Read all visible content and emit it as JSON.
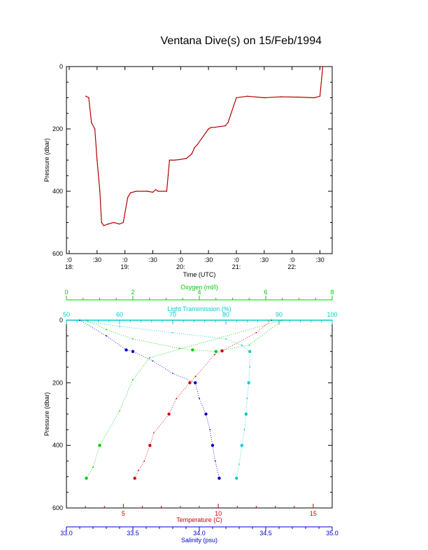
{
  "title": "Ventana Dive(s) on 15/Feb/1994",
  "chart_data": [
    {
      "type": "line",
      "title": "Ventana Dive(s) on 15/Feb/1994",
      "xlabel": "Time (UTC)",
      "ylabel": "Pressure (dbar)",
      "xlim": [
        17.95,
        22.72
      ],
      "ylim": [
        600,
        0
      ],
      "y_inverted": true,
      "x_ticks": [
        {
          "v": 18.0,
          "top": ":0",
          "bottom": "18:"
        },
        {
          "v": 18.5,
          "top": ":30",
          "bottom": ""
        },
        {
          "v": 19.0,
          "top": ":0",
          "bottom": "19:"
        },
        {
          "v": 19.5,
          "top": ":30",
          "bottom": ""
        },
        {
          "v": 20.0,
          "top": ":0",
          "bottom": "20:"
        },
        {
          "v": 20.5,
          "top": ":30",
          "bottom": ""
        },
        {
          "v": 21.0,
          "top": ":0",
          "bottom": "21:"
        },
        {
          "v": 21.5,
          "top": ":30",
          "bottom": ""
        },
        {
          "v": 22.0,
          "top": ":0",
          "bottom": "22:"
        },
        {
          "v": 22.5,
          "top": ":30",
          "bottom": ""
        }
      ],
      "y_ticks": [
        "0",
        "200",
        "400",
        "600"
      ],
      "series": [
        {
          "color": "#cc0000",
          "x": [
            18.3,
            18.35,
            18.4,
            18.46,
            18.5,
            18.55,
            18.58,
            18.62,
            18.7,
            18.8,
            18.9,
            18.97,
            19.05,
            19.1,
            19.2,
            19.4,
            19.5,
            19.55,
            19.6,
            19.75,
            19.8,
            19.9,
            20.1,
            20.2,
            20.25,
            20.3,
            20.5,
            20.55,
            20.6,
            20.8,
            20.85,
            21.0,
            21.2,
            21.5,
            21.8,
            22.1,
            22.4,
            22.5,
            22.55
          ],
          "y": [
            95,
            100,
            180,
            200,
            300,
            400,
            500,
            510,
            505,
            500,
            505,
            500,
            420,
            405,
            400,
            400,
            403,
            395,
            400,
            400,
            300,
            300,
            295,
            280,
            260,
            250,
            200,
            195,
            195,
            190,
            180,
            100,
            95,
            100,
            97,
            98,
            100,
            95,
            0
          ]
        }
      ]
    },
    {
      "type": "scatter",
      "ylabel": "Pressure (dbar)",
      "ylim": [
        600,
        0
      ],
      "y_inverted": true,
      "y_ticks": [
        "0",
        "200",
        "400",
        "600"
      ],
      "axes": {
        "oxygen": {
          "label": "Oxygen (ml/l)",
          "color": "#00cc00",
          "range": [
            0,
            8
          ],
          "ticks": [
            "0",
            "2",
            "4",
            "6",
            "8"
          ]
        },
        "light": {
          "label": "Light Transmission (%)",
          "color": "#00cccc",
          "range": [
            50,
            100
          ],
          "ticks": [
            "50",
            "60",
            "70",
            "80",
            "90",
            "100"
          ]
        },
        "temperature": {
          "label": "Temperature (C)",
          "color": "#cc0000",
          "range": [
            2,
            16
          ],
          "ticks": [
            "5",
            "10",
            "15"
          ]
        },
        "salinity": {
          "label": "Salinity (psu)",
          "color": "#0000cc",
          "range": [
            33.0,
            35.0
          ],
          "ticks": [
            "33.0",
            "33.5",
            "34.0",
            "34.5",
            "35.0"
          ]
        }
      },
      "series": [
        {
          "name": "Oxygen (ml/l)",
          "color": "#00cc00",
          "axis": "oxygen",
          "x": [
            0.6,
            1.2,
            2.0,
            3.4,
            3.8,
            4.5,
            5.5,
            6.5,
            2.5,
            2.0,
            1.6,
            1.0,
            0.8,
            0.6
          ],
          "y": [
            0,
            30,
            60,
            90,
            95,
            100,
            80,
            0,
            120,
            190,
            290,
            400,
            470,
            505
          ]
        },
        {
          "name": "Light Transmission (%)",
          "color": "#00cccc",
          "axis": "light",
          "x": [
            52,
            60,
            70,
            80,
            83,
            84.5,
            84.5,
            84.3,
            84.0,
            83.8,
            83.5,
            83.0,
            82.5,
            82.0
          ],
          "y": [
            0,
            20,
            40,
            60,
            80,
            100,
            150,
            200,
            250,
            300,
            350,
            400,
            460,
            505
          ]
        },
        {
          "name": "Temperature (C)",
          "color": "#cc0000",
          "axis": "temperature",
          "x": [
            12.8,
            12.0,
            10.2,
            9.8,
            8.8,
            8.5,
            7.8,
            7.4,
            6.6,
            6.4,
            6.1,
            5.8,
            5.6
          ],
          "y": [
            0,
            40,
            98,
            110,
            180,
            200,
            250,
            300,
            360,
            400,
            450,
            480,
            505
          ]
        },
        {
          "name": "Salinity (psu)",
          "color": "#0000cc",
          "axis": "salinity",
          "x": [
            33.1,
            33.3,
            33.45,
            33.5,
            33.65,
            33.8,
            33.97,
            34.0,
            34.05,
            34.08,
            34.1,
            34.12,
            34.15
          ],
          "y": [
            0,
            50,
            95,
            100,
            130,
            170,
            200,
            250,
            300,
            350,
            400,
            450,
            505
          ]
        }
      ]
    }
  ]
}
